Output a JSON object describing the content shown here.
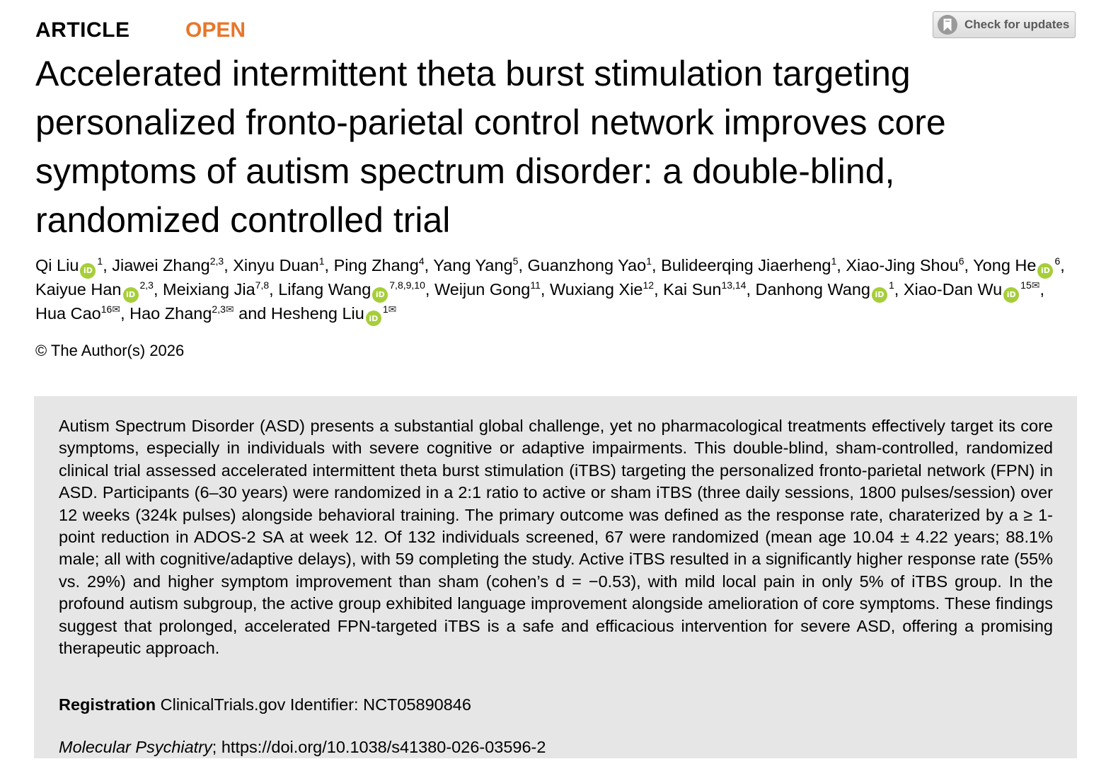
{
  "header": {
    "article_type": "ARTICLE",
    "access": "OPEN",
    "check_updates_label": "Check for updates"
  },
  "title": "Accelerated intermittent theta burst stimulation targeting personalized fronto-parietal control network improves core symptoms of autism spectrum disorder: a double-blind, randomized controlled trial",
  "authors": [
    {
      "name": "Qi Liu",
      "orcid": true,
      "affil": "1",
      "corresponding": false
    },
    {
      "name": "Jiawei Zhang",
      "orcid": false,
      "affil": "2,3",
      "corresponding": false
    },
    {
      "name": "Xinyu Duan",
      "orcid": false,
      "affil": "1",
      "corresponding": false
    },
    {
      "name": "Ping Zhang",
      "orcid": false,
      "affil": "4",
      "corresponding": false
    },
    {
      "name": "Yang Yang",
      "orcid": false,
      "affil": "5",
      "corresponding": false
    },
    {
      "name": "Guanzhong Yao",
      "orcid": false,
      "affil": "1",
      "corresponding": false
    },
    {
      "name": "Bulideerqing Jiaerheng",
      "orcid": false,
      "affil": "1",
      "corresponding": false
    },
    {
      "name": "Xiao-Jing Shou",
      "orcid": false,
      "affil": "6",
      "corresponding": false
    },
    {
      "name": "Yong He",
      "orcid": true,
      "affil": "6",
      "corresponding": false
    },
    {
      "name": "Kaiyue Han",
      "orcid": true,
      "affil": "2,3",
      "corresponding": false
    },
    {
      "name": "Meixiang Jia",
      "orcid": false,
      "affil": "7,8",
      "corresponding": false
    },
    {
      "name": "Lifang Wang",
      "orcid": true,
      "affil": "7,8,9,10",
      "corresponding": false
    },
    {
      "name": "Weijun Gong",
      "orcid": false,
      "affil": "11",
      "corresponding": false
    },
    {
      "name": "Wuxiang Xie",
      "orcid": false,
      "affil": "12",
      "corresponding": false
    },
    {
      "name": "Kai Sun",
      "orcid": false,
      "affil": "13,14",
      "corresponding": false
    },
    {
      "name": "Danhong Wang",
      "orcid": true,
      "affil": "1",
      "corresponding": false
    },
    {
      "name": "Xiao-Dan Wu",
      "orcid": true,
      "affil": "15",
      "corresponding": true
    },
    {
      "name": "Hua Cao",
      "orcid": false,
      "affil": "16",
      "corresponding": true
    },
    {
      "name": "Hao Zhang",
      "orcid": false,
      "affil": "2,3",
      "corresponding": true
    },
    {
      "name": "Hesheng Liu",
      "orcid": true,
      "affil": "1",
      "corresponding": true
    }
  ],
  "author_separator": ", ",
  "last_author_conjunction": " and ",
  "orcid_icon_text": "iD",
  "mail_symbol": "✉",
  "copyright": "© The Author(s) 2026",
  "abstract": "Autism Spectrum Disorder (ASD) presents a substantial global challenge, yet no pharmacological treatments effectively target its core symptoms, especially in individuals with severe cognitive or adaptive impairments. This double-blind, sham-controlled, randomized clinical trial assessed accelerated intermittent theta burst stimulation (iTBS) targeting the personalized fronto-parietal network (FPN) in ASD. Participants (6–30 years) were randomized in a 2:1 ratio to active or sham iTBS (three daily sessions, 1800 pulses/session) over 12 weeks (324k pulses) alongside behavioral training. The primary outcome was defined as the response rate, charaterized by a ≥ 1-point reduction in ADOS-2 SA at week 12. Of 132 individuals screened, 67 were randomized (mean age 10.04 ± 4.22 years; 88.1% male; all with cognitive/adaptive delays), with 59 completing the study. Active iTBS resulted in a significantly higher response rate (55% vs. 29%) and higher symptom improvement than sham (cohen’s d = −0.53), with mild local pain in only 5% of iTBS group. In the profound autism subgroup, the active group exhibited language improvement alongside amelioration of core symptoms. These findings suggest that prolonged, accelerated FPN-targeted iTBS is a safe and efficacious intervention for severe ASD, offering a promising therapeutic approach.",
  "registration": {
    "label": "Registration",
    "text": "ClinicalTrials.gov Identifier: NCT05890846"
  },
  "citation": {
    "journal": "Molecular Psychiatry",
    "separator": "; ",
    "doi_url": "https://doi.org/10.1038/s41380-026-03596-2"
  },
  "colors": {
    "open_access": "#e8762b",
    "orcid": "#a6ce39",
    "abstract_bg": "#e6e6e6"
  }
}
